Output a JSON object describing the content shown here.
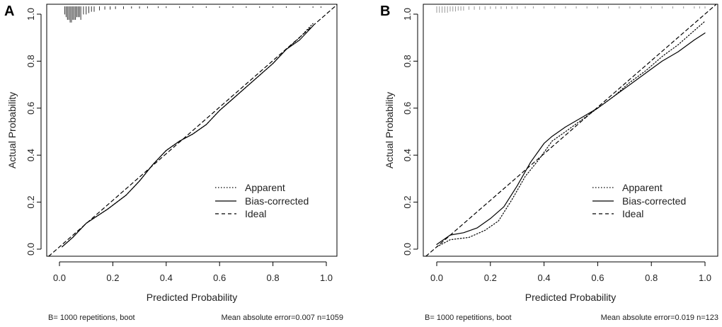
{
  "chart_data": [
    {
      "type": "line",
      "panel_label": "A",
      "xlabel": "Predicted Probability",
      "ylabel": "Actual Probability",
      "xlim": [
        0.0,
        1.0
      ],
      "ylim": [
        0.0,
        1.0
      ],
      "x_ticks": [
        "0.0",
        "0.2",
        "0.4",
        "0.6",
        "0.8",
        "1.0"
      ],
      "y_ticks": [
        "0.0",
        "0.2",
        "0.4",
        "0.6",
        "0.8",
        "1.0"
      ],
      "grid": false,
      "legend_position": "bottom-right",
      "legend": [
        "Apparent",
        "Bias-corrected",
        "Ideal"
      ],
      "series": [
        {
          "name": "Apparent",
          "line_style": "dotted",
          "points": [
            [
              0.01,
              0.01
            ],
            [
              0.05,
              0.05
            ],
            [
              0.1,
              0.11
            ],
            [
              0.14,
              0.14
            ],
            [
              0.18,
              0.17
            ],
            [
              0.25,
              0.23
            ],
            [
              0.3,
              0.29
            ],
            [
              0.35,
              0.36
            ],
            [
              0.4,
              0.42
            ],
            [
              0.45,
              0.46
            ],
            [
              0.5,
              0.49
            ],
            [
              0.55,
              0.53
            ],
            [
              0.6,
              0.59
            ],
            [
              0.65,
              0.64
            ],
            [
              0.7,
              0.69
            ],
            [
              0.75,
              0.74
            ],
            [
              0.8,
              0.79
            ],
            [
              0.85,
              0.85
            ],
            [
              0.9,
              0.9
            ],
            [
              0.95,
              0.96
            ]
          ]
        },
        {
          "name": "Bias-corrected",
          "line_style": "solid",
          "points": [
            [
              0.01,
              0.01
            ],
            [
              0.05,
              0.05
            ],
            [
              0.1,
              0.11
            ],
            [
              0.14,
              0.14
            ],
            [
              0.18,
              0.17
            ],
            [
              0.25,
              0.23
            ],
            [
              0.3,
              0.29
            ],
            [
              0.35,
              0.36
            ],
            [
              0.4,
              0.42
            ],
            [
              0.45,
              0.46
            ],
            [
              0.5,
              0.49
            ],
            [
              0.55,
              0.53
            ],
            [
              0.6,
              0.59
            ],
            [
              0.65,
              0.64
            ],
            [
              0.7,
              0.69
            ],
            [
              0.75,
              0.74
            ],
            [
              0.8,
              0.79
            ],
            [
              0.85,
              0.85
            ],
            [
              0.9,
              0.89
            ],
            [
              0.95,
              0.95
            ]
          ]
        },
        {
          "name": "Ideal",
          "line_style": "dashed",
          "points": [
            [
              -0.04,
              -0.04
            ],
            [
              1.04,
              1.04
            ]
          ]
        }
      ],
      "rug": {
        "position": "top",
        "x": [
          0.02,
          0.025,
          0.03,
          0.035,
          0.04,
          0.045,
          0.05,
          0.055,
          0.06,
          0.065,
          0.07,
          0.075,
          0.08,
          0.09,
          0.1,
          0.11,
          0.12,
          0.13,
          0.15,
          0.17,
          0.19,
          0.21,
          0.24,
          0.27,
          0.3,
          0.33,
          0.37,
          0.4,
          0.45,
          0.5,
          0.55,
          0.6,
          0.65,
          0.7,
          0.75,
          0.8,
          0.85,
          0.9,
          0.95,
          0.98
        ],
        "heights": [
          0.03,
          0.04,
          0.05,
          0.05,
          0.06,
          0.06,
          0.05,
          0.05,
          0.05,
          0.04,
          0.04,
          0.04,
          0.05,
          0.03,
          0.03,
          0.025,
          0.02,
          0.02,
          0.015,
          0.012,
          0.012,
          0.01,
          0.01,
          0.008,
          0.008,
          0.007,
          0.006,
          0.006,
          0.006,
          0.005,
          0.005,
          0.005,
          0.005,
          0.005,
          0.005,
          0.005,
          0.005,
          0.005,
          0.005,
          0.005
        ]
      },
      "footer_left": "B= 1000 repetitions, boot",
      "footer_right": "Mean absolute error=0.007 n=1059"
    },
    {
      "type": "line",
      "panel_label": "B",
      "xlabel": "Predicted Probability",
      "ylabel": "Actual Probability",
      "xlim": [
        0.0,
        1.0
      ],
      "ylim": [
        0.0,
        1.0
      ],
      "x_ticks": [
        "0.0",
        "0.2",
        "0.4",
        "0.6",
        "0.8",
        "1.0"
      ],
      "y_ticks": [
        "0.0",
        "0.2",
        "0.4",
        "0.6",
        "0.8",
        "1.0"
      ],
      "grid": false,
      "legend_position": "bottom-right",
      "legend": [
        "Apparent",
        "Bias-corrected",
        "Ideal"
      ],
      "series": [
        {
          "name": "Apparent",
          "line_style": "dotted",
          "points": [
            [
              0.0,
              0.01
            ],
            [
              0.05,
              0.04
            ],
            [
              0.12,
              0.05
            ],
            [
              0.18,
              0.08
            ],
            [
              0.23,
              0.12
            ],
            [
              0.28,
              0.21
            ],
            [
              0.33,
              0.31
            ],
            [
              0.38,
              0.38
            ],
            [
              0.43,
              0.46
            ],
            [
              0.48,
              0.5
            ],
            [
              0.54,
              0.55
            ],
            [
              0.6,
              0.6
            ],
            [
              0.66,
              0.65
            ],
            [
              0.72,
              0.71
            ],
            [
              0.78,
              0.76
            ],
            [
              0.84,
              0.82
            ],
            [
              0.9,
              0.87
            ],
            [
              0.96,
              0.93
            ],
            [
              1.0,
              0.97
            ]
          ]
        },
        {
          "name": "Bias-corrected",
          "line_style": "solid",
          "points": [
            [
              0.0,
              0.02
            ],
            [
              0.05,
              0.06
            ],
            [
              0.1,
              0.07
            ],
            [
              0.15,
              0.09
            ],
            [
              0.2,
              0.13
            ],
            [
              0.25,
              0.18
            ],
            [
              0.3,
              0.27
            ],
            [
              0.35,
              0.37
            ],
            [
              0.4,
              0.45
            ],
            [
              0.43,
              0.48
            ],
            [
              0.48,
              0.52
            ],
            [
              0.54,
              0.56
            ],
            [
              0.6,
              0.6
            ],
            [
              0.66,
              0.65
            ],
            [
              0.72,
              0.7
            ],
            [
              0.78,
              0.75
            ],
            [
              0.84,
              0.8
            ],
            [
              0.9,
              0.84
            ],
            [
              0.96,
              0.89
            ],
            [
              1.0,
              0.92
            ]
          ]
        },
        {
          "name": "Ideal",
          "line_style": "dashed",
          "points": [
            [
              -0.04,
              -0.04
            ],
            [
              1.04,
              1.04
            ]
          ]
        }
      ],
      "rug": {
        "position": "top",
        "x": [
          0.0,
          0.01,
          0.02,
          0.03,
          0.04,
          0.05,
          0.06,
          0.07,
          0.08,
          0.09,
          0.1,
          0.12,
          0.14,
          0.16,
          0.18,
          0.2,
          0.22,
          0.24,
          0.26,
          0.28,
          0.3,
          0.33,
          0.36,
          0.4,
          0.44,
          0.48,
          0.52,
          0.56,
          0.6,
          0.64,
          0.68,
          0.72,
          0.76,
          0.8,
          0.84,
          0.88,
          0.92,
          0.96,
          0.98,
          1.0
        ],
        "heights": [
          0.015,
          0.015,
          0.015,
          0.015,
          0.015,
          0.012,
          0.012,
          0.012,
          0.01,
          0.01,
          0.01,
          0.008,
          0.008,
          0.008,
          0.008,
          0.006,
          0.006,
          0.006,
          0.006,
          0.006,
          0.006,
          0.005,
          0.005,
          0.005,
          0.005,
          0.005,
          0.005,
          0.005,
          0.005,
          0.005,
          0.005,
          0.005,
          0.005,
          0.005,
          0.005,
          0.005,
          0.005,
          0.005,
          0.005,
          0.005
        ]
      },
      "footer_left": "B= 1000 repetitions, boot",
      "footer_right": "Mean absolute error=0.019 n=123"
    }
  ]
}
